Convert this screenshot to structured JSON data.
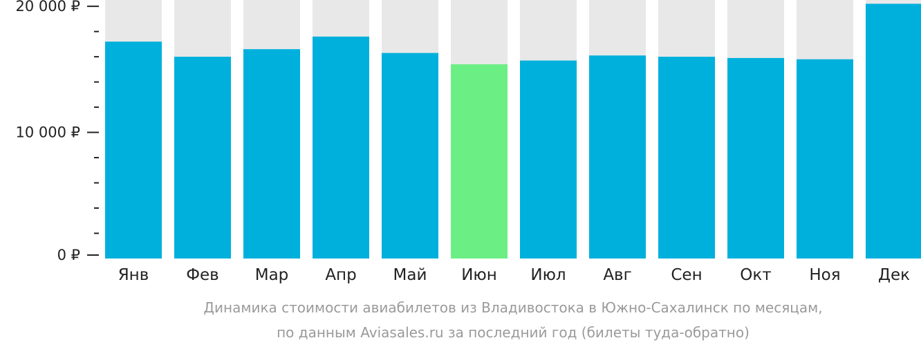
{
  "chart_data": {
    "type": "bar",
    "categories": [
      "Янв",
      "Фев",
      "Мар",
      "Апр",
      "Май",
      "Июн",
      "Июл",
      "Авг",
      "Сен",
      "Окт",
      "Ноя",
      "Дек"
    ],
    "values": [
      17200,
      16000,
      16600,
      17600,
      16300,
      15400,
      15700,
      16100,
      16000,
      15900,
      15800,
      20200
    ],
    "highlight_index": 5,
    "ylim": [
      0,
      20500
    ],
    "yticks": [
      {
        "value": 0,
        "label": "0 ₽"
      },
      {
        "value": 10000,
        "label": "10 000 ₽"
      },
      {
        "value": 20000,
        "label": "20 000 ₽"
      }
    ],
    "minor_tick_step": 2000,
    "grid": false,
    "legend": "none",
    "caption": [
      "Динамика стоимости авиабилетов из Владивостока в Южно-Сахалинск по месяцам,",
      "по данным Aviasales.ru за последний год (билеты туда-обратно)"
    ],
    "colors": {
      "bar": "#00b0dc",
      "highlight": "#6bef85",
      "track": "#e8e8e8",
      "axis": "#222222",
      "caption": "#9a9a9a"
    }
  }
}
